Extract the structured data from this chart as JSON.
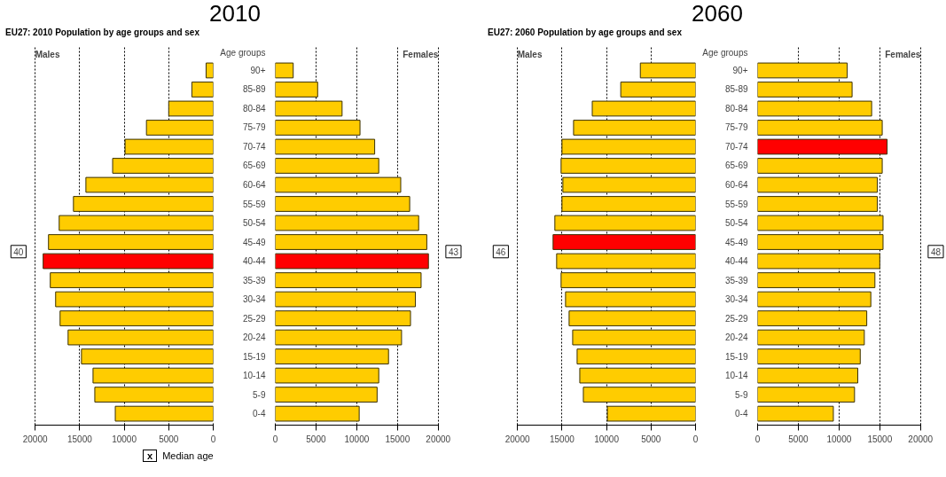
{
  "chart_data": [
    {
      "type": "bar",
      "orientation": "horizontal",
      "title": "2010",
      "subtitle": "EU27: 2010 Population by age groups and sex",
      "categories": [
        null,
        null,
        null,
        null,
        null,
        null,
        null,
        null,
        null,
        null,
        null,
        null,
        null,
        null,
        null,
        null,
        null,
        null,
        null
      ],
      "series": [
        {
          "name": "Males",
          "colors": [
            "#ffcc00",
            "#ffcc00",
            "#ffcc00",
            "#ffcc00",
            "#ffcc00",
            "#ffcc00",
            "#ffcc00",
            "#ffcc00",
            "#ffcc00",
            "#ffcc00",
            "#ff0000",
            "#ffcc00",
            "#ffcc00",
            "#ffcc00",
            "#ffcc00",
            "#ffcc00",
            "#ffcc00",
            "#ffcc00",
            "#ffcc00"
          ],
          "values": [
            800,
            2400,
            5000,
            7500,
            9900,
            11300,
            14300,
            15700,
            17300,
            18500,
            19100,
            18300,
            17700,
            17200,
            16300,
            14800,
            13500,
            13300,
            11000
          ]
        }
      ],
      "xlim": [
        20000,
        0
      ],
      "xticks": [
        20000,
        15000,
        10000,
        5000,
        0
      ],
      "grid": "x",
      "tick_labels": "x",
      "annotations": [
        "40",
        "x",
        "Median age"
      ]
    },
    {
      "type": "bar",
      "orientation": "horizontal",
      "ylabel": "Age groups",
      "categories": [
        "90+",
        "85-89",
        "80-84",
        "75-79",
        "70-74",
        "65-69",
        "60-64",
        "55-59",
        "50-54",
        "45-49",
        "40-44",
        "35-39",
        "30-34",
        "25-29",
        "20-24",
        "15-19",
        "10-14",
        "5-9",
        "0-4"
      ],
      "series": [
        {
          "name": "Females",
          "colors": [
            "#ffcc00",
            "#ffcc00",
            "#ffcc00",
            "#ffcc00",
            "#ffcc00",
            "#ffcc00",
            "#ffcc00",
            "#ffcc00",
            "#ffcc00",
            "#ffcc00",
            "#ff0000",
            "#ffcc00",
            "#ffcc00",
            "#ffcc00",
            "#ffcc00",
            "#ffcc00",
            "#ffcc00",
            "#ffcc00",
            "#ffcc00"
          ],
          "values": [
            2200,
            5200,
            8200,
            10400,
            12200,
            12700,
            15400,
            16500,
            17600,
            18600,
            18800,
            17900,
            17200,
            16600,
            15500,
            13900,
            12700,
            12500,
            10300
          ]
        }
      ],
      "xlim": [
        0,
        20000
      ],
      "xticks": [
        0,
        5000,
        10000,
        15000,
        20000
      ],
      "grid": "x",
      "annotations": [
        "43"
      ]
    },
    {
      "type": "bar",
      "orientation": "horizontal",
      "title": "2060",
      "subtitle": "EU27: 2060 Population by age groups and sex",
      "categories": [
        null,
        null,
        null,
        null,
        null,
        null,
        null,
        null,
        null,
        null,
        null,
        null,
        null,
        null,
        null,
        null,
        null,
        null,
        null
      ],
      "series": [
        {
          "name": "Males",
          "colors": [
            "#ffcc00",
            "#ffcc00",
            "#ffcc00",
            "#ffcc00",
            "#ffcc00",
            "#ffcc00",
            "#ffcc00",
            "#ffcc00",
            "#ffcc00",
            "#ff0000",
            "#ffcc00",
            "#ffcc00",
            "#ffcc00",
            "#ffcc00",
            "#ffcc00",
            "#ffcc00",
            "#ffcc00",
            "#ffcc00",
            "#ffcc00"
          ],
          "values": [
            6200,
            8400,
            11600,
            13700,
            15000,
            15100,
            14900,
            15000,
            15800,
            16000,
            15600,
            15100,
            14600,
            14200,
            13800,
            13300,
            13000,
            12600,
            9900
          ]
        }
      ],
      "xlim": [
        20000,
        0
      ],
      "xticks": [
        20000,
        15000,
        10000,
        5000,
        0
      ],
      "grid": "x",
      "tick_labels": "x",
      "annotations": [
        "46"
      ]
    },
    {
      "type": "bar",
      "orientation": "horizontal",
      "ylabel": "Age groups",
      "categories": [
        "90+",
        "85-89",
        "80-84",
        "75-79",
        "70-74",
        "65-69",
        "60-64",
        "55-59",
        "50-54",
        "45-49",
        "40-44",
        "35-39",
        "30-34",
        "25-29",
        "20-24",
        "15-19",
        "10-14",
        "5-9",
        "0-4"
      ],
      "series": [
        {
          "name": "Females",
          "colors": [
            "#ffcc00",
            "#ffcc00",
            "#ffcc00",
            "#ffcc00",
            "#ff0000",
            "#ffcc00",
            "#ffcc00",
            "#ffcc00",
            "#ffcc00",
            "#ffcc00",
            "#ffcc00",
            "#ffcc00",
            "#ffcc00",
            "#ffcc00",
            "#ffcc00",
            "#ffcc00",
            "#ffcc00",
            "#ffcc00",
            "#ffcc00"
          ],
          "values": [
            11000,
            11600,
            14000,
            15300,
            15900,
            15300,
            14700,
            14700,
            15400,
            15400,
            15000,
            14400,
            13900,
            13400,
            13100,
            12600,
            12300,
            11900,
            9300
          ]
        }
      ],
      "xlim": [
        0,
        20000
      ],
      "xticks": [
        0,
        5000,
        10000,
        15000,
        20000
      ],
      "grid": "x",
      "annotations": [
        "48"
      ]
    }
  ]
}
